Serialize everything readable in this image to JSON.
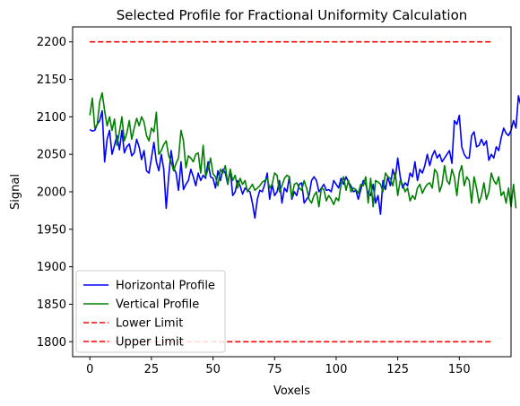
{
  "chart_data": {
    "type": "line",
    "title": "Selected Profile for Fractional Uniformity Calculation",
    "xlabel": "Voxels",
    "ylabel": "Signal",
    "xlim": [
      -7,
      171
    ],
    "ylim": [
      1780,
      2220
    ],
    "xticks": [
      0,
      25,
      50,
      75,
      100,
      125,
      150
    ],
    "yticks": [
      1800,
      1850,
      1900,
      1950,
      2000,
      2050,
      2100,
      2150,
      2200
    ],
    "legend_position": "lower-left",
    "grid": false,
    "series": [
      {
        "name": "Horizontal Profile",
        "color": "#0000ff",
        "style": "solid",
        "x_start": 0,
        "values": [
          2083,
          2081,
          2082,
          2090,
          2095,
          2108,
          2040,
          2070,
          2082,
          2050,
          2062,
          2075,
          2056,
          2082,
          2052,
          2060,
          2064,
          2048,
          2052,
          2070,
          2060,
          2043,
          2055,
          2028,
          2025,
          2045,
          2066,
          2040,
          2028,
          2050,
          2030,
          1978,
          2020,
          2055,
          2032,
          2025,
          2002,
          2040,
          2003,
          2010,
          2015,
          2030,
          2020,
          2008,
          2025,
          2015,
          2022,
          2018,
          2040,
          2020,
          2018,
          2005,
          2028,
          2015,
          2030,
          2025,
          2010,
          2030,
          1995,
          2000,
          2015,
          2008,
          1997,
          2005,
          2002,
          2000,
          1985,
          1965,
          1990,
          2002,
          2000,
          2010,
          2025,
          1990,
          2010,
          1995,
          2000,
          2015,
          1985,
          2005,
          2000,
          2020,
          1990,
          2000,
          1995,
          2010,
          2012,
          1985,
          1990,
          1995,
          2015,
          2020,
          2015,
          2000,
          2005,
          2010,
          2002,
          2003,
          2000,
          2015,
          2010,
          2005,
          2018,
          2010,
          2020,
          2013,
          2008,
          2000,
          2002,
          1990,
          2003,
          2015,
          2010,
          1998,
          1995,
          2010,
          1985,
          1995,
          1970,
          2015,
          2003,
          2020,
          2008,
          2030,
          2018,
          2045,
          2020,
          2005,
          2012,
          2008,
          2025,
          2020,
          2040,
          2015,
          2030,
          2025,
          2035,
          2050,
          2035,
          2048,
          2055,
          2045,
          2050,
          2040,
          2045,
          2050,
          2055,
          2038,
          2095,
          2090,
          2102,
          2060,
          2050,
          2045,
          2045,
          2075,
          2080,
          2060,
          2062,
          2070,
          2062,
          2068,
          2042,
          2050,
          2045,
          2060,
          2055,
          2072,
          2085,
          2078,
          2075,
          2082,
          2095,
          2085,
          2128,
          2115
        ]
      },
      {
        "name": "Vertical Profile",
        "color": "#008000",
        "style": "solid",
        "x_start": 0,
        "values": [
          2102,
          2125,
          2085,
          2090,
          2120,
          2132,
          2108,
          2088,
          2100,
          2082,
          2097,
          2062,
          2080,
          2100,
          2068,
          2078,
          2095,
          2070,
          2085,
          2098,
          2088,
          2100,
          2093,
          2075,
          2068,
          2085,
          2080,
          2106,
          2050,
          2055,
          2063,
          2068,
          2048,
          2040,
          2028,
          2038,
          2045,
          2082,
          2068,
          2032,
          2048,
          2045,
          2040,
          2050,
          2052,
          2025,
          2062,
          2020,
          2030,
          2045,
          2024,
          2020,
          2008,
          2030,
          2025,
          2035,
          2010,
          2030,
          2015,
          2022,
          2005,
          2018,
          2010,
          2015,
          2000,
          2005,
          2010,
          2002,
          2005,
          2008,
          2013,
          2015,
          2018,
          2005,
          2010,
          2025,
          2022,
          2000,
          2008,
          2018,
          2022,
          2020,
          1992,
          2010,
          2012,
          2005,
          2002,
          2015,
          2005,
          1990,
          1985,
          1995,
          2000,
          1980,
          2005,
          2003,
          1988,
          1995,
          1990,
          1983,
          1992,
          1988,
          2010,
          2020,
          2002,
          2015,
          2000,
          2005,
          2003,
          1998,
          2010,
          2008,
          2020,
          1985,
          2018,
          1980,
          2015,
          2013,
          2010,
          2000,
          2025,
          2020,
          2018,
          2008,
          2025,
          1995,
          2015,
          2010,
          2000,
          2005,
          1988,
          1995,
          1990,
          2005,
          2010,
          1998,
          2005,
          2010,
          2012,
          2005,
          2030,
          2025,
          2000,
          2010,
          2035,
          2015,
          2010,
          2030,
          2020,
          1995,
          2025,
          2035,
          2008,
          2020,
          2015,
          1985,
          2020,
          2005,
          1985,
          1995,
          2012,
          1990,
          2000,
          2025,
          2015,
          2010,
          2020,
          1995,
          2000,
          1985,
          2005,
          1980,
          2010,
          1978
        ]
      },
      {
        "name": "Lower Limit",
        "color": "#ff0000",
        "style": "dashed",
        "x": [
          0,
          163
        ],
        "y": [
          2200,
          2200
        ]
      },
      {
        "name": "Upper Limit",
        "color": "#ff0000",
        "style": "dashed",
        "x": [
          0,
          163
        ],
        "y": [
          1800,
          1800
        ]
      }
    ]
  }
}
